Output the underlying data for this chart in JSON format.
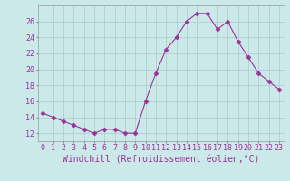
{
  "x": [
    0,
    1,
    2,
    3,
    4,
    5,
    6,
    7,
    8,
    9,
    10,
    11,
    12,
    13,
    14,
    15,
    16,
    17,
    18,
    19,
    20,
    21,
    22,
    23
  ],
  "y": [
    14.5,
    14.0,
    13.5,
    13.0,
    12.5,
    12.0,
    12.5,
    12.5,
    12.0,
    12.0,
    16.0,
    19.5,
    22.5,
    24.0,
    26.0,
    27.0,
    27.0,
    25.0,
    26.0,
    23.5,
    21.5,
    19.5,
    18.5,
    17.5
  ],
  "line_color": "#993399",
  "marker": "D",
  "marker_size": 2.5,
  "bg_color": "#cce9e9",
  "grid_color": "#aacccc",
  "xlabel": "Windchill (Refroidissement éolien,°C)",
  "xlabel_fontsize": 7,
  "tick_fontsize": 6,
  "ylim": [
    11,
    28
  ],
  "yticks": [
    12,
    14,
    16,
    18,
    20,
    22,
    24,
    26
  ],
  "xlim": [
    -0.5,
    23.5
  ]
}
